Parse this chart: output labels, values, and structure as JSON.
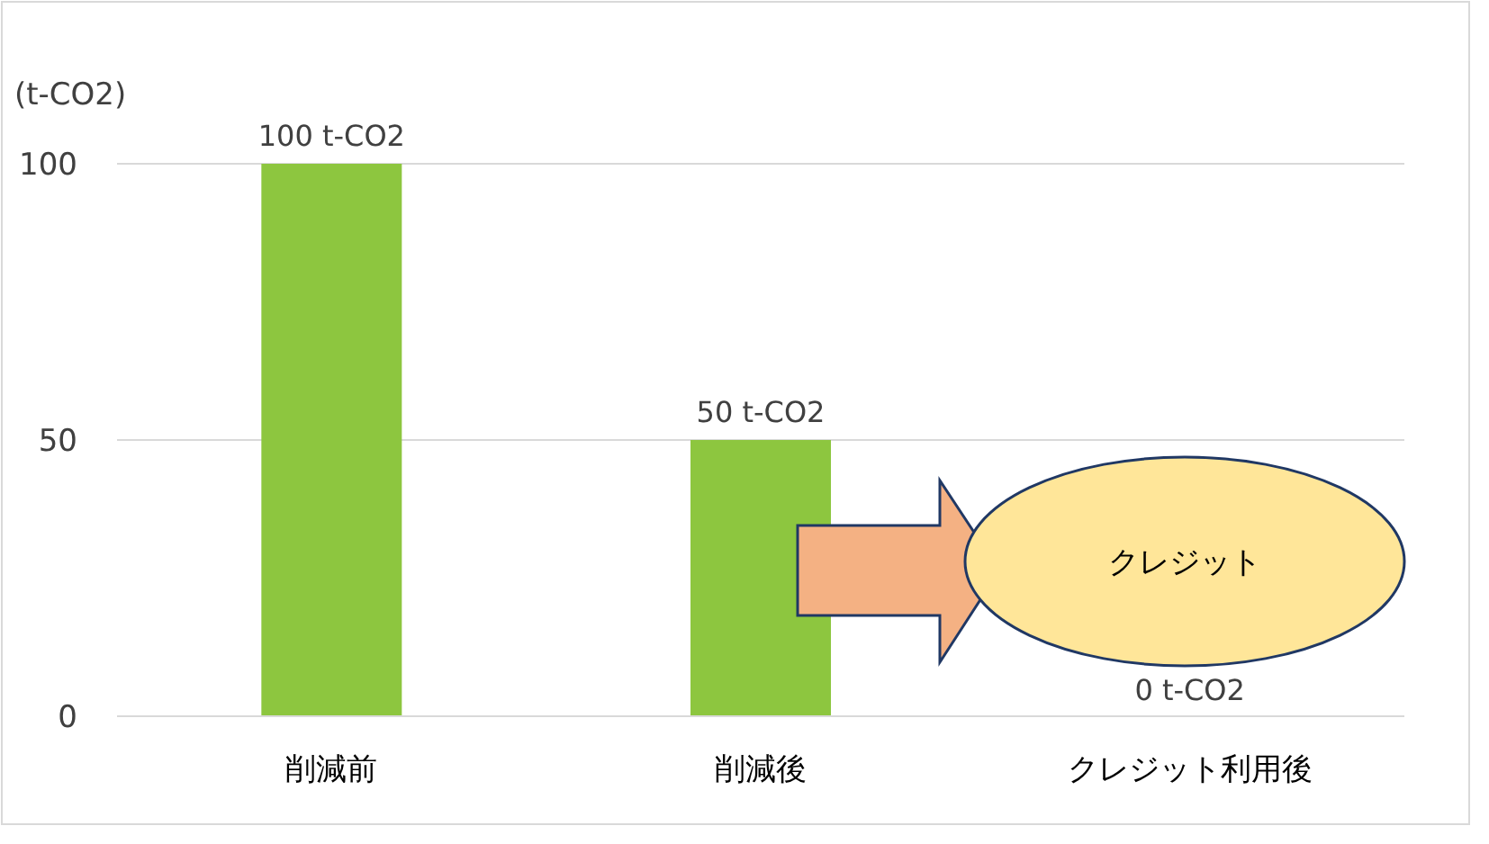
{
  "chart_data": {
    "type": "bar",
    "ylabel": "(t-CO2)",
    "categories": [
      "削減前",
      "削減後",
      "クレジット利用後"
    ],
    "values": [
      100,
      50,
      0
    ],
    "color": "#8dc63f",
    "value_labels": [
      "100 t-CO2",
      "50 t-CO2",
      "0 t-CO2"
    ],
    "ylim": [
      0,
      100
    ],
    "yticks": [
      0,
      50,
      100
    ],
    "grid": "y",
    "annotations": [
      "クレジット"
    ]
  }
}
